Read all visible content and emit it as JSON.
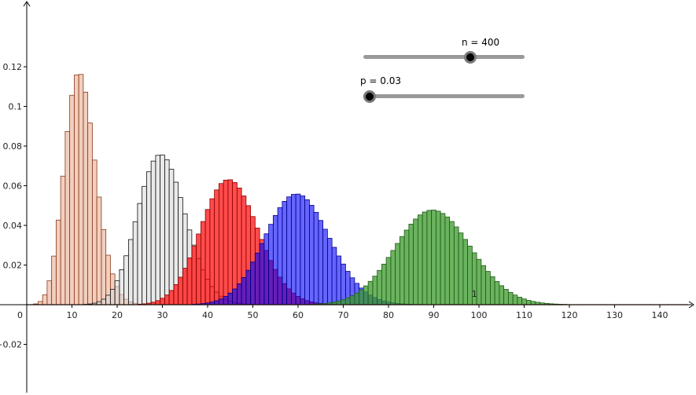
{
  "chart_data": {
    "type": "bar",
    "title": "",
    "xlabel": "",
    "ylabel": "",
    "xlim": [
      0,
      148
    ],
    "ylim": [
      -0.02,
      0.12
    ],
    "x_ticks": [
      0,
      10,
      20,
      30,
      40,
      50,
      60,
      70,
      80,
      90,
      100,
      110,
      120,
      130,
      140
    ],
    "y_ticks": [
      -0.02,
      0.02,
      0.04,
      0.06,
      0.08,
      0.1,
      0.12
    ],
    "x_tick_labels": [
      "0",
      "10",
      "20",
      "30",
      "40",
      "50",
      "60",
      "70",
      "80",
      "90",
      "100",
      "110",
      "120",
      "130",
      "140"
    ],
    "y_tick_labels": [
      "−0.02",
      "0.02",
      "0.04",
      "0.06",
      "0.08",
      "0.1",
      "0.12"
    ],
    "origin_label": "0",
    "grid": false,
    "series": [
      {
        "distribution": "binomial",
        "n": 400,
        "p": 0.03,
        "fill": "#e8a88a",
        "stroke": "#8a3a1a",
        "opacity": 0.55
      },
      {
        "distribution": "binomial",
        "n": 400,
        "p": 0.075,
        "fill": "#d9d9d9",
        "stroke": "#111111",
        "opacity": 0.55
      },
      {
        "distribution": "binomial",
        "n": 400,
        "p": 0.1125,
        "fill": "#ff0000",
        "stroke": "#8b0000",
        "opacity": 0.7
      },
      {
        "distribution": "binomial",
        "n": 400,
        "p": 0.15,
        "fill": "#0000ff",
        "stroke": "#00008b",
        "opacity": 0.6
      },
      {
        "distribution": "binomial",
        "n": 400,
        "p": 0.225,
        "fill": "#3a9a2a",
        "stroke": "#1e5a14",
        "opacity": 0.75
      }
    ],
    "annotations": [
      {
        "text": "1",
        "x": 99,
        "y": 0.004
      }
    ]
  },
  "sliders": [
    {
      "name": "n",
      "label": "n = 400",
      "min": 1,
      "max": 500,
      "value": 400
    },
    {
      "name": "p",
      "label": "p = 0.03",
      "min": 0,
      "max": 1,
      "value": 0.03
    }
  ]
}
